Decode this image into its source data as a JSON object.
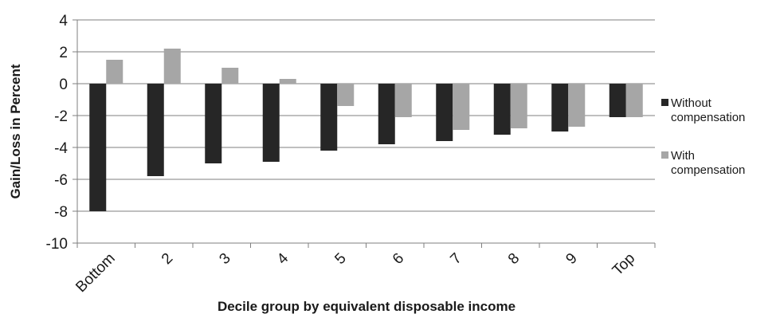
{
  "chart_data": {
    "type": "bar",
    "categories": [
      "Bottom",
      "2",
      "3",
      "4",
      "5",
      "6",
      "7",
      "8",
      "9",
      "Top"
    ],
    "series": [
      {
        "name": "Without compensation",
        "legend_lines": [
          "Without",
          "compensation"
        ],
        "color": "#262626",
        "values": [
          -8.0,
          -5.8,
          -5.0,
          -4.9,
          -4.2,
          -3.8,
          -3.6,
          -3.2,
          -3.0,
          -2.1
        ]
      },
      {
        "name": "With compensation",
        "legend_lines": [
          "With",
          "compensation"
        ],
        "color": "#a6a6a6",
        "values": [
          1.5,
          2.2,
          1.0,
          0.3,
          -1.4,
          -2.1,
          -2.9,
          -2.8,
          -2.7,
          -2.1
        ]
      }
    ],
    "xlabel": "Decile group by equivalent disposable income",
    "ylabel": "Gain/Loss in Percent",
    "ylim": [
      -10,
      4
    ],
    "yticks": [
      4,
      2,
      0,
      -2,
      -4,
      -6,
      -8,
      -10
    ],
    "ytick_labels": [
      "4",
      "2",
      "0",
      "-2",
      "-4",
      "-6",
      "-8",
      "-10"
    ],
    "grid": true,
    "legend_position": "right"
  }
}
